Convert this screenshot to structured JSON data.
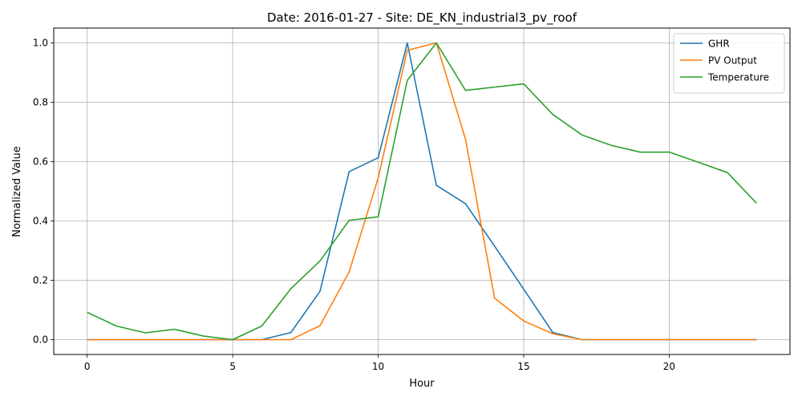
{
  "chart_data": {
    "type": "line",
    "title": "Date: 2016-01-27 - Site: DE_KN_industrial3_pv_roof",
    "xlabel": "Hour",
    "ylabel": "Normalized Value",
    "xlim": [
      -1.15,
      24.15
    ],
    "ylim": [
      -0.05,
      1.05
    ],
    "xticks": [
      0,
      5,
      10,
      15,
      20
    ],
    "yticks": [
      0.0,
      0.2,
      0.4,
      0.6,
      0.8,
      1.0
    ],
    "xtick_labels": [
      "0",
      "5",
      "10",
      "15",
      "20"
    ],
    "ytick_labels": [
      "0.0",
      "0.2",
      "0.4",
      "0.6",
      "0.8",
      "1.0"
    ],
    "grid": true,
    "legend_position": "top-right",
    "x": [
      0,
      1,
      2,
      3,
      4,
      5,
      6,
      7,
      8,
      9,
      10,
      11,
      12,
      13,
      14,
      15,
      16,
      17,
      18,
      19,
      20,
      21,
      22,
      23
    ],
    "series": [
      {
        "name": "GHR",
        "color": "#1f77b4",
        "values": [
          0,
          0,
          0,
          0,
          0,
          0,
          0,
          0.024,
          0.163,
          0.566,
          0.613,
          1.0,
          0.52,
          0.458,
          0.315,
          0.17,
          0.024,
          0,
          0,
          0,
          0,
          0,
          0,
          0
        ]
      },
      {
        "name": "PV Output",
        "color": "#ff7f0e",
        "values": [
          0,
          0,
          0,
          0,
          0,
          0,
          0,
          0,
          0.047,
          0.228,
          0.545,
          0.975,
          1.0,
          0.675,
          0.14,
          0.063,
          0.02,
          0,
          0,
          0,
          0,
          0,
          0,
          0
        ]
      },
      {
        "name": "Temperature",
        "color": "#2ca02c",
        "values": [
          0.092,
          0.046,
          0.023,
          0.035,
          0.012,
          0,
          0.046,
          0.172,
          0.265,
          0.402,
          0.414,
          0.874,
          1.0,
          0.84,
          0.851,
          0.862,
          0.759,
          0.69,
          0.655,
          0.632,
          0.632,
          0.598,
          0.563,
          0.46
        ]
      }
    ]
  }
}
